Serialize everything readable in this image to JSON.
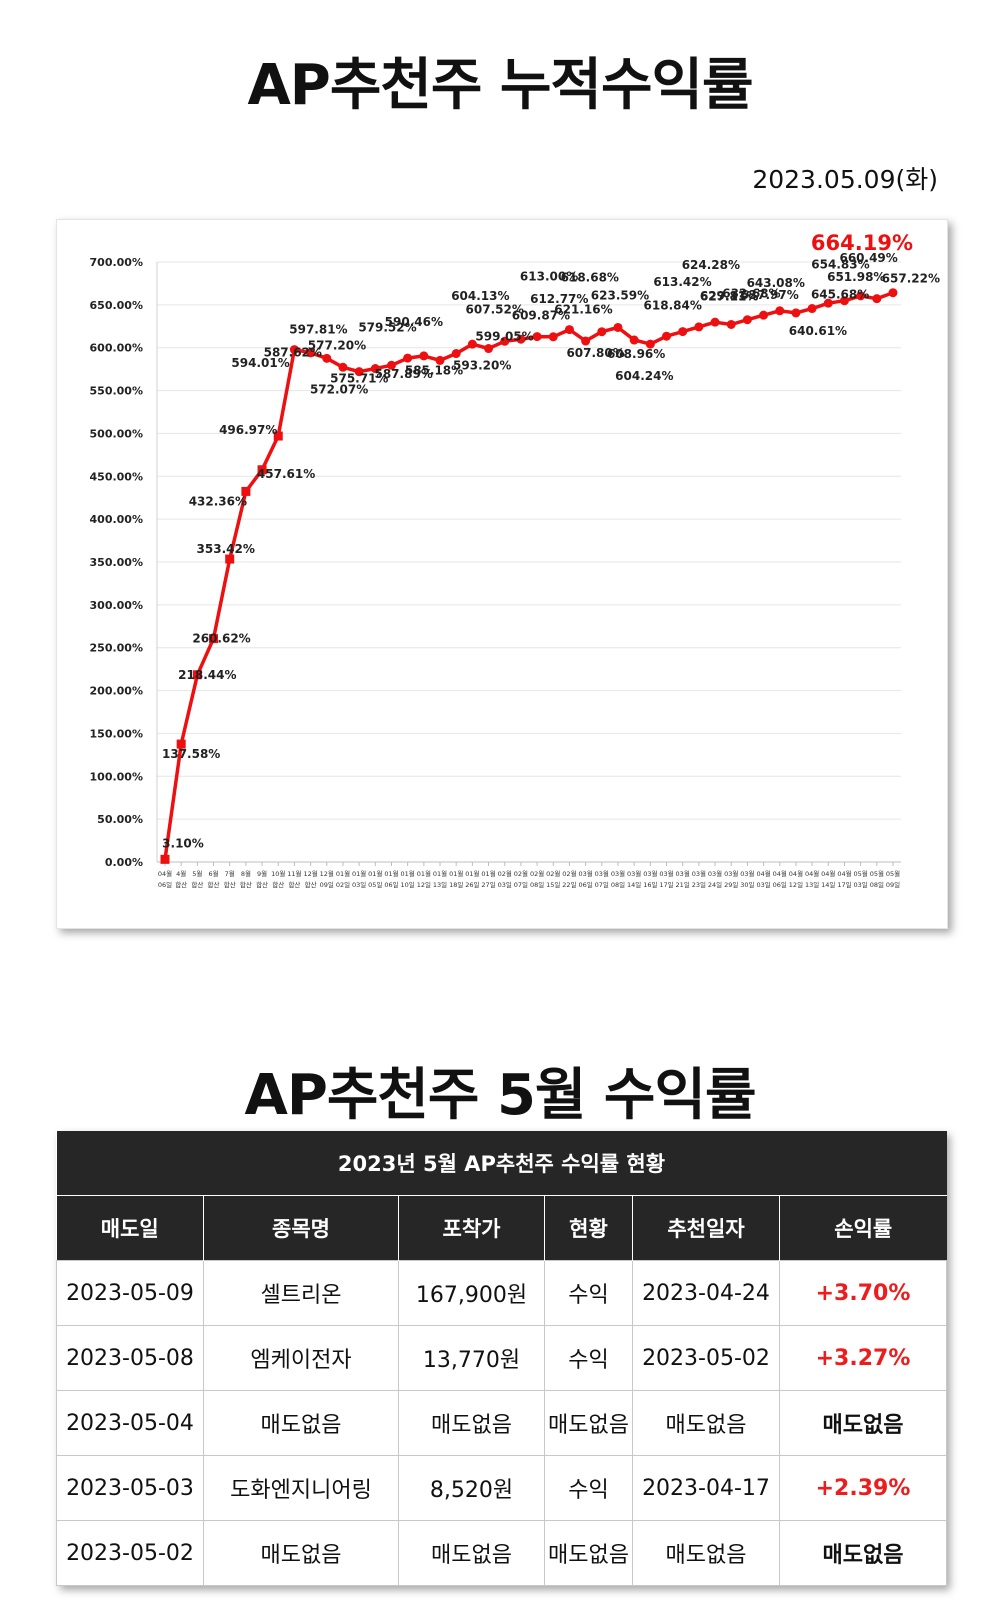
{
  "page": {
    "title": "AP추천주 누적수익률",
    "date": "2023.05.09(화)",
    "title2": "AP추천주 5월 수익률"
  },
  "colors": {
    "line": "#ee1010",
    "header_bg": "#262626",
    "profit": "#ee1c1c"
  },
  "chart_data": {
    "type": "line",
    "title": "",
    "xlabel": "",
    "ylabel": "",
    "ylim": [
      0,
      700
    ],
    "y_ticks": [
      "0.00%",
      "50.00%",
      "100.00%",
      "150.00%",
      "200.00%",
      "250.00%",
      "300.00%",
      "350.00%",
      "400.00%",
      "450.00%",
      "500.00%",
      "550.00%",
      "600.00%",
      "650.00%",
      "700.00%"
    ],
    "grid": true,
    "legend": "none",
    "highlight_label": "664.19%",
    "categories": [
      [
        "04월",
        "06일"
      ],
      [
        "4월",
        "합산"
      ],
      [
        "5월",
        "합산"
      ],
      [
        "6월",
        "합산"
      ],
      [
        "7월",
        "합산"
      ],
      [
        "8월",
        "합산"
      ],
      [
        "9월",
        "합산"
      ],
      [
        "10월",
        "합산"
      ],
      [
        "11월",
        "합산"
      ],
      [
        "12월",
        "합산"
      ],
      [
        "12월",
        "09일"
      ],
      [
        "01월",
        "02일"
      ],
      [
        "01월",
        "03일"
      ],
      [
        "01월",
        "05일"
      ],
      [
        "01월",
        "06일"
      ],
      [
        "01월",
        "10일"
      ],
      [
        "01월",
        "12일"
      ],
      [
        "01월",
        "13일"
      ],
      [
        "01월",
        "18일"
      ],
      [
        "01월",
        "26일"
      ],
      [
        "01월",
        "27일"
      ],
      [
        "02월",
        "03일"
      ],
      [
        "02월",
        "07일"
      ],
      [
        "02월",
        "08일"
      ],
      [
        "02월",
        "15일"
      ],
      [
        "02월",
        "22일"
      ],
      [
        "03월",
        "06일"
      ],
      [
        "03월",
        "07일"
      ],
      [
        "03월",
        "08일"
      ],
      [
        "03월",
        "14일"
      ],
      [
        "03월",
        "16일"
      ],
      [
        "03월",
        "17일"
      ],
      [
        "03월",
        "21일"
      ],
      [
        "03월",
        "23일"
      ],
      [
        "03월",
        "24일"
      ],
      [
        "03월",
        "29일"
      ],
      [
        "03월",
        "30일"
      ],
      [
        "04월",
        "03일"
      ],
      [
        "04월",
        "06일"
      ],
      [
        "04월",
        "12일"
      ],
      [
        "04월",
        "13일"
      ],
      [
        "04월",
        "14일"
      ],
      [
        "04월",
        "17일"
      ],
      [
        "05월",
        "03일"
      ],
      [
        "05월",
        "08일"
      ],
      [
        "05월",
        "09일"
      ]
    ],
    "series": [
      {
        "values": [
          3.1,
          137.58,
          218.44,
          260.62,
          353.42,
          432.36,
          457.61,
          496.97,
          597.81,
          594.01,
          587.62,
          577.2,
          572.07,
          575.71,
          579.52,
          587.89,
          590.46,
          585.18,
          593.2,
          604.13,
          599.05,
          607.52,
          609.87,
          613.0,
          612.77,
          621.16,
          607.8,
          618.68,
          623.59,
          608.96,
          604.24,
          613.42,
          618.84,
          624.28,
          629.81,
          627.11,
          632.68,
          637.97,
          643.08,
          640.61,
          645.68,
          651.98,
          654.83,
          660.49,
          657.22,
          664.19
        ],
        "labels": [
          "3.10%",
          "137.58%",
          "218.44%",
          "260.62%",
          "353.42%",
          "432.36%",
          "457.61%",
          "496.97%",
          "597.81%",
          "594.01%",
          "587.62%",
          "577.20%",
          "572.07%",
          "575.71%",
          "579.52%",
          "587.89%",
          "590.46%",
          "585.18%",
          "593.20%",
          "604.13%",
          "599.05%",
          "607.52%",
          "609.87%",
          "613.00%",
          "612.77%",
          "621.16%",
          "607.80%",
          "618.68%",
          "623.59%",
          "608.96%",
          "604.24%",
          "613.42%",
          "618.84%",
          "624.28%",
          "629.81%",
          "627.11%",
          "632.68%",
          "637.97%",
          "643.08%",
          "640.61%",
          "645.68%",
          "651.98%",
          "654.83%",
          "660.49%",
          "657.22%",
          ""
        ]
      }
    ]
  },
  "table": {
    "caption": "2023년 5월 AP추천주 수익률 현황",
    "headers": [
      "매도일",
      "종목명",
      "포착가",
      "현황",
      "추천일자",
      "손익률"
    ],
    "rows": [
      [
        "2023-05-09",
        "셀트리온",
        "167,900원",
        "수익",
        "2023-04-24",
        "+3.70%"
      ],
      [
        "2023-05-08",
        "엠케이전자",
        "13,770원",
        "수익",
        "2023-05-02",
        "+3.27%"
      ],
      [
        "2023-05-04",
        "매도없음",
        "매도없음",
        "매도없음",
        "매도없음",
        "매도없음"
      ],
      [
        "2023-05-03",
        "도화엔지니어링",
        "8,520원",
        "수익",
        "2023-04-17",
        "+2.39%"
      ],
      [
        "2023-05-02",
        "매도없음",
        "매도없음",
        "매도없음",
        "매도없음",
        "매도없음"
      ]
    ]
  }
}
